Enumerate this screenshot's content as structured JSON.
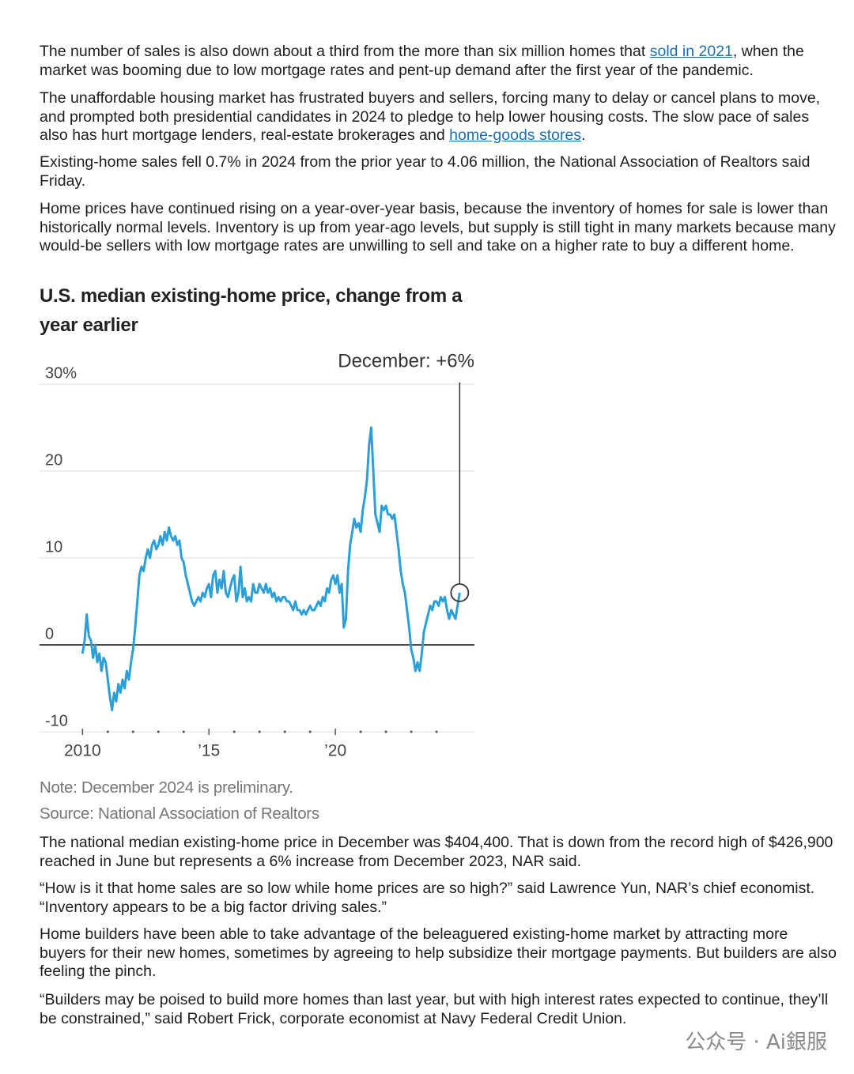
{
  "paragraphs_before": [
    [
      "The number of sales is also down about a third from the more than six million homes that ",
      "sold in 2021",
      ", when the market was booming due to low mortgage rates and pent-up demand after the first year of the pandemic."
    ],
    [
      "The unaffordable housing market has frustrated buyers and sellers, forcing many to delay or cancel plans to move, and prompted both presidential candidates in 2024 to pledge to help lower housing costs. The slow pace of sales also has hurt mortgage lenders, real-estate brokerages and ",
      "home-goods stores",
      "."
    ],
    [
      "Existing-home sales fell 0.7% in 2024 from the prior year to 4.06 million, the National Association of Realtors said Friday."
    ],
    [
      "Home prices have continued rising on a year-over-year basis, because the inventory of homes for sale is lower than historically normal levels. Inventory is up from year-ago levels, but supply is still tight in many markets because many would-be sellers with low mortgage rates are unwilling to sell and take on a higher rate to buy a different home."
    ]
  ],
  "chart_data": {
    "type": "line",
    "title": "U.S. median existing-home price, change from a year earlier",
    "annotation": "December: +6%",
    "note": "Note: December 2024 is preliminary.",
    "source": "Source: National Association of Realtors",
    "color": "#2a9fd8",
    "x": [
      2010,
      2010.083,
      2010.167,
      2010.25,
      2010.333,
      2010.417,
      2010.5,
      2010.583,
      2010.667,
      2010.75,
      2010.833,
      2010.917,
      2011,
      2011.083,
      2011.167,
      2011.25,
      2011.333,
      2011.417,
      2011.5,
      2011.583,
      2011.667,
      2011.75,
      2011.833,
      2011.917,
      2012,
      2012.083,
      2012.167,
      2012.25,
      2012.333,
      2012.417,
      2012.5,
      2012.583,
      2012.667,
      2012.75,
      2012.833,
      2012.917,
      2013,
      2013.083,
      2013.167,
      2013.25,
      2013.333,
      2013.417,
      2013.5,
      2013.583,
      2013.667,
      2013.75,
      2013.833,
      2013.917,
      2014,
      2014.083,
      2014.167,
      2014.25,
      2014.333,
      2014.417,
      2014.5,
      2014.583,
      2014.667,
      2014.75,
      2014.833,
      2014.917,
      2015,
      2015.083,
      2015.167,
      2015.25,
      2015.333,
      2015.417,
      2015.5,
      2015.583,
      2015.667,
      2015.75,
      2015.833,
      2015.917,
      2016,
      2016.083,
      2016.167,
      2016.25,
      2016.333,
      2016.417,
      2016.5,
      2016.583,
      2016.667,
      2016.75,
      2016.833,
      2016.917,
      2017,
      2017.083,
      2017.167,
      2017.25,
      2017.333,
      2017.417,
      2017.5,
      2017.583,
      2017.667,
      2017.75,
      2017.833,
      2017.917,
      2018,
      2018.083,
      2018.167,
      2018.25,
      2018.333,
      2018.417,
      2018.5,
      2018.583,
      2018.667,
      2018.75,
      2018.833,
      2018.917,
      2019,
      2019.083,
      2019.167,
      2019.25,
      2019.333,
      2019.417,
      2019.5,
      2019.583,
      2019.667,
      2019.75,
      2019.833,
      2019.917,
      2020,
      2020.083,
      2020.167,
      2020.25,
      2020.333,
      2020.417,
      2020.5,
      2020.583,
      2020.667,
      2020.75,
      2020.833,
      2020.917,
      2021,
      2021.083,
      2021.167,
      2021.25,
      2021.333,
      2021.417,
      2021.5,
      2021.583,
      2021.667,
      2021.75,
      2021.833,
      2021.917,
      2022,
      2022.083,
      2022.167,
      2022.25,
      2022.333,
      2022.417,
      2022.5,
      2022.583,
      2022.667,
      2022.75,
      2022.833,
      2022.917,
      2023,
      2023.083,
      2023.167,
      2023.25,
      2023.333,
      2023.417,
      2023.5,
      2023.583,
      2023.667,
      2023.75,
      2023.833,
      2023.917,
      2024,
      2024.083,
      2024.167,
      2024.25,
      2024.333,
      2024.417,
      2024.5,
      2024.583,
      2024.667,
      2024.75,
      2024.833,
      2024.917
    ],
    "values": [
      -1,
      0.5,
      3.5,
      1,
      0.5,
      -1.5,
      0,
      -2,
      -1,
      -3,
      -1.5,
      -2,
      -4,
      -6,
      -7.5,
      -5.5,
      -6.5,
      -4.5,
      -5.5,
      -4,
      -5,
      -3,
      -4,
      -2,
      -0.5,
      2,
      5,
      8,
      9,
      8.5,
      10,
      11,
      10,
      11.5,
      12,
      11,
      11.5,
      12.5,
      11.5,
      13,
      12,
      13.5,
      12.5,
      12,
      12.5,
      11.5,
      12,
      10,
      9.5,
      8,
      7,
      6,
      5,
      4.5,
      5,
      5.5,
      5,
      6,
      5.5,
      6.5,
      7,
      5.5,
      8,
      8.5,
      6,
      7.5,
      6.5,
      8.5,
      6,
      5.5,
      6.5,
      7.5,
      8,
      5,
      6,
      9,
      5.5,
      6.5,
      5,
      5.5,
      5,
      7,
      6,
      6,
      7,
      6.5,
      6,
      7,
      6,
      6.5,
      5.5,
      6,
      5,
      5.5,
      5,
      5.5,
      5.5,
      5,
      5,
      4.5,
      4,
      5,
      4,
      4,
      3.5,
      4,
      3.5,
      4,
      4.5,
      4,
      4,
      4.5,
      5,
      4.5,
      5.5,
      5,
      6.5,
      6,
      7.5,
      8,
      7,
      8,
      6,
      7,
      2,
      3,
      8.5,
      11.5,
      13,
      14.5,
      13.5,
      14,
      13,
      15.5,
      17,
      19,
      23,
      25,
      20,
      15,
      14,
      13,
      16,
      15.5,
      16,
      15,
      15,
      14.5,
      15,
      13,
      11,
      8.5,
      7,
      6,
      4,
      2,
      -0.5,
      -1.5,
      -3,
      -2,
      -3,
      -1,
      1.5,
      2.5,
      3.5,
      4.5,
      4,
      5,
      5,
      4.5,
      5.5,
      5,
      5.5,
      4,
      3,
      4,
      3.5,
      3,
      4.5,
      6
    ],
    "xlim": [
      2008.3,
      2025.5
    ],
    "xticks": [
      {
        "value": 2010,
        "label": "2010"
      },
      {
        "value": 2015,
        "label": "’15"
      },
      {
        "value": 2020,
        "label": "’20"
      }
    ],
    "xminorticks": [
      2011,
      2012,
      2013,
      2014,
      2016,
      2017,
      2018,
      2019,
      2021,
      2022,
      2023,
      2024
    ],
    "ylim": [
      -10,
      30
    ],
    "yticks": [
      {
        "value": 30,
        "label": "30%"
      },
      20,
      10,
      0,
      -10
    ],
    "grid": true
  },
  "paragraphs_after": [
    "The national median existing-home price in December was $404,400. That is down from the record high of $426,900 reached in June but represents a 6% increase from December 2023, NAR said.",
    "“How is it that home sales are so low while home prices are so high?” said Lawrence Yun, NAR’s chief economist. “Inventory appears to be a big factor driving sales.”",
    "Home builders have been able to take advantage of the beleaguered existing-home market by attracting more buyers for their new homes, sometimes by agreeing to help subsidize their mortgage payments. But builders are also feeling the pinch.",
    "“Builders may be poised to build more homes than last year, but with high interest rates expected to continue, they’ll be constrained,” said Robert Frick, corporate economist at Navy Federal Credit Union."
  ],
  "watermark": "公众号 · Ai銀服"
}
